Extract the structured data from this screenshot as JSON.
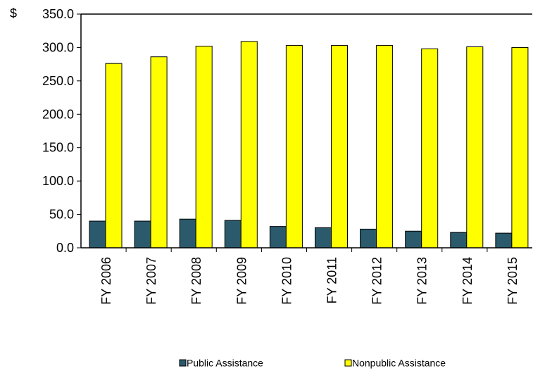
{
  "chart_data": {
    "type": "bar",
    "title": "",
    "xlabel": "",
    "ylabel": "",
    "y_unit_prefix": "$",
    "ylim": [
      0,
      350
    ],
    "y_ticks": [
      "0.0",
      "50.0",
      "100.0",
      "150.0",
      "200.0",
      "250.0",
      "300.0",
      "350.0"
    ],
    "grid": false,
    "legend_position": "bottom",
    "categories": [
      "FY 2006",
      "FY 2007",
      "FY 2008",
      "FY 2009",
      "FY 2010",
      "FY 2011",
      "FY 2012",
      "FY 2013",
      "FY 2014",
      "FY 2015"
    ],
    "series": [
      {
        "name": "Public Assistance",
        "color": "#2a5a6b",
        "values": [
          40,
          40,
          43,
          41,
          32,
          30,
          28,
          25,
          23,
          22
        ]
      },
      {
        "name": "Nonpublic Assistance",
        "color": "#ffff00",
        "values": [
          276,
          286,
          302,
          309,
          303,
          303,
          303,
          298,
          301,
          300
        ]
      }
    ]
  }
}
